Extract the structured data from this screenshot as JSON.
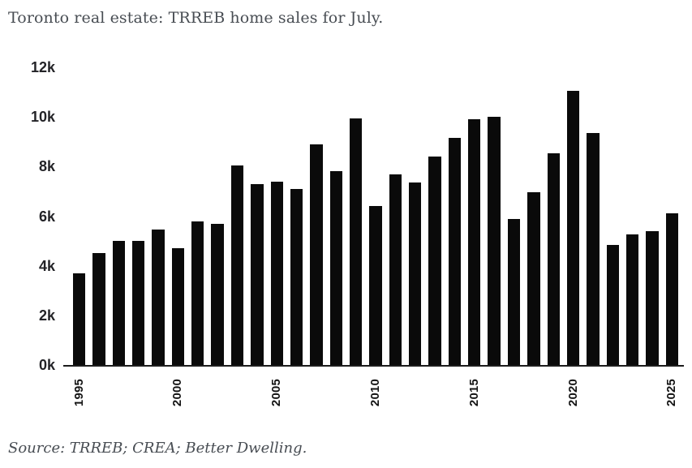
{
  "header": {
    "title": "Toronto real estate: TRREB home sales for July."
  },
  "footer": {
    "source": "Source: TRREB; CREA; Better Dwelling."
  },
  "colors": {
    "background": "#ffffff",
    "title_text": "#484d53",
    "y_tick_text": "#232327",
    "x_tick_text": "#141414",
    "bar": "#0a0a0a",
    "axis_line": "#1c1c1c"
  },
  "chart_data": {
    "type": "bar",
    "title": "Toronto real estate: TRREB home sales for July.",
    "source_note": "Source: TRREB; CREA; Better Dwelling.",
    "categories": [
      "1995",
      "1996",
      "1997",
      "1998",
      "1999",
      "2000",
      "2001",
      "2002",
      "2003",
      "2004",
      "2005",
      "2006",
      "2007",
      "2008",
      "2009",
      "2010",
      "2011",
      "2012",
      "2013",
      "2014",
      "2015",
      "2016",
      "2017",
      "2018",
      "2019",
      "2020",
      "2021",
      "2022",
      "2023",
      "2024",
      "2025"
    ],
    "values": [
      3700,
      4500,
      5000,
      5000,
      5450,
      4700,
      5800,
      5700,
      8050,
      7300,
      7400,
      7100,
      8900,
      7800,
      9950,
      6400,
      7700,
      7350,
      8400,
      9150,
      9900,
      10000,
      5900,
      6950,
      8550,
      11050,
      9350,
      4850,
      5250,
      5400,
      6100
    ],
    "xlabel": "",
    "ylabel": "",
    "ylim": [
      0,
      12000
    ],
    "y_tick_labels": [
      "0k",
      "2k",
      "4k",
      "6k",
      "8k",
      "10k",
      "12k"
    ],
    "x_tick_labels": [
      "1995",
      "2000",
      "2005",
      "2010",
      "2015",
      "2020",
      "2025"
    ],
    "x_tick_every": 5,
    "grid": false,
    "legend": "none"
  }
}
